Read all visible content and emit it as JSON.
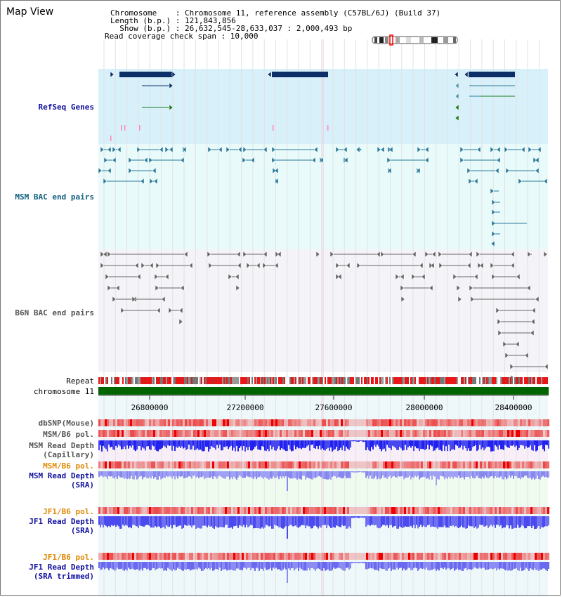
{
  "header": {
    "title": "Map View",
    "chromosome": "Chromosome    : Chromosome 11, reference assembly (C57BL/6J) (Build 37)",
    "length": "Length (b.p.) : 121,843,856",
    "show": "  Show (b.p.) : 26,632,545-28,633,037 : 2,000,493 bp",
    "coverage": "Read coverage check span : 10,000"
  },
  "tracks": {
    "refseq": "RefSeq Genes",
    "msm_bac": "MSM BAC end pairs",
    "b6n_bac": "B6N BAC end pairs",
    "repeat": "Repeat",
    "chromosome": "chromosome 11",
    "dbsnp": "dbSNP(Mouse)",
    "msm_pol1": "MSM/B6 pol.",
    "msm_depth_cap": "MSM Read Depth\n(Capillary)",
    "msm_pol2": "MSM/B6 pol.",
    "msm_depth_sra": "MSM Read Depth\n(SRA)",
    "jf1_pol1": "JF1/B6 pol.",
    "jf1_depth_sra": "JF1 Read Depth\n(SRA)",
    "jf1_pol2": "JF1/B6 pol.",
    "jf1_depth_trim": "JF1 Read Depth\n(SRA trimmed)"
  },
  "axis": {
    "ticks": [
      "26800000",
      "27200000",
      "27600000",
      "28000000",
      "28400000"
    ]
  },
  "colors": {
    "refseq_bg": "#d8f0fa",
    "msm_bg": "#e8fafa",
    "b6n_bg": "#f4f4f8",
    "gene": "#0b2f66",
    "msm_feature": "#2a7a9a",
    "b6n_feature": "#666666",
    "chromosome": "#006400",
    "depth": "#4444ee",
    "pol": "#ee4444",
    "label_blue": "#1010a0",
    "label_orange": "#e08800",
    "label_teal": "#106080"
  }
}
